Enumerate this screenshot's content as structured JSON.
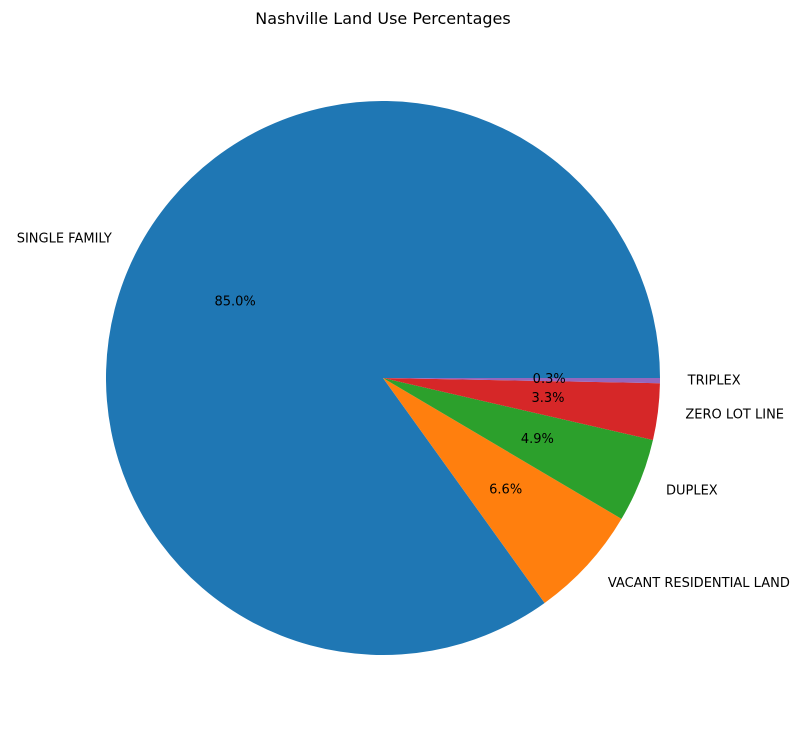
{
  "chart_data": {
    "type": "pie",
    "title": "Nashville Land Use Percentages",
    "categories": [
      "SINGLE FAMILY",
      "VACANT RESIDENTIAL LAND",
      "DUPLEX",
      "ZERO LOT LINE",
      "TRIPLEX"
    ],
    "values": [
      85.0,
      6.6,
      4.9,
      3.3,
      0.3
    ],
    "value_labels": [
      "85.0%",
      "6.6%",
      "4.9%",
      "3.3%",
      "0.3%"
    ],
    "colors": [
      "#1f77b4",
      "#ff7f0e",
      "#2ca02c",
      "#d62728",
      "#9467bd"
    ],
    "start_angle_deg": 0,
    "direction": "counterclockwise",
    "legend": "none"
  }
}
